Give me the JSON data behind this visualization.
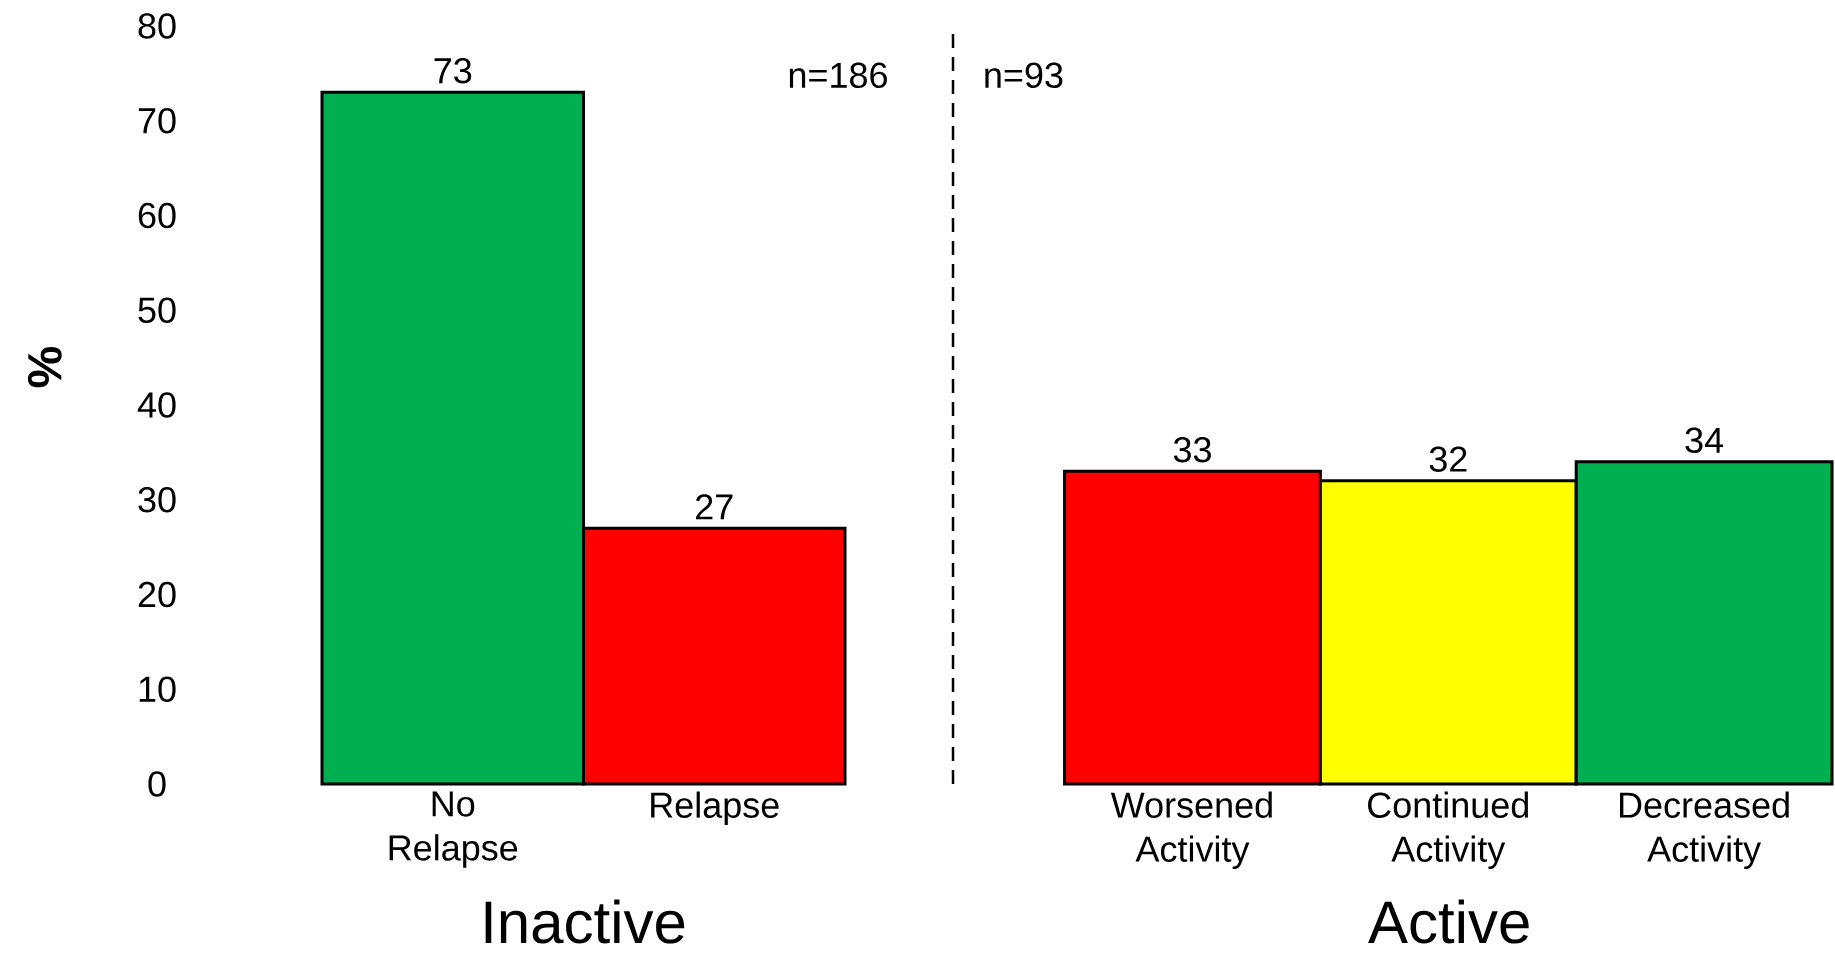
{
  "chart_data": [
    {
      "type": "bar",
      "ylabel": "%",
      "xlabel": "Inactive",
      "categories": [
        "No Relapse",
        "Relapse"
      ],
      "values": [
        73,
        27
      ],
      "colors": [
        "#00b050",
        "#ff0000"
      ],
      "ylim": [
        0,
        80
      ],
      "yticks": [
        0,
        10,
        20,
        30,
        40,
        50,
        60,
        70,
        80
      ],
      "data_labels": true,
      "annotations": [
        "n=186"
      ]
    },
    {
      "type": "bar",
      "xlabel": "Active",
      "categories": [
        "Worsened Activity",
        "Continued Activity",
        "Decreased Activity"
      ],
      "values": [
        33,
        32,
        34
      ],
      "colors": [
        "#ff0000",
        "#ffff00",
        "#00b050"
      ],
      "ylim": [
        0,
        80
      ],
      "tick_labels": "x",
      "data_labels": true,
      "annotations": [
        "n=93"
      ]
    }
  ]
}
